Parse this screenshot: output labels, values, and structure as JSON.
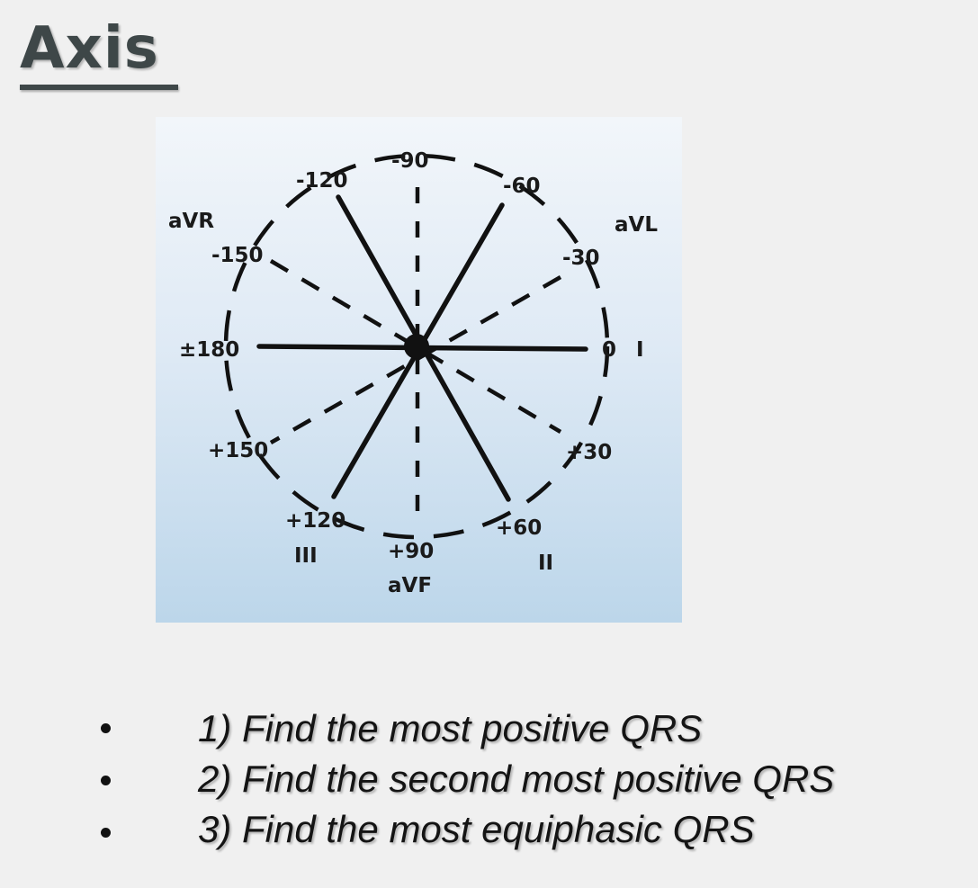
{
  "slide": {
    "title": "Axis"
  },
  "diagram": {
    "angle_labels": {
      "m90": "-90",
      "m120": "-120",
      "m60": "-60",
      "m150": "-150",
      "m30": "-30",
      "pm180": "±180",
      "zero": "0",
      "p150": "+150",
      "p30": "+30",
      "p120": "+120",
      "p60": "+60",
      "p90": "+90"
    },
    "lead_labels": {
      "aVR": "aVR",
      "aVL": "aVL",
      "I": "I",
      "III": "III",
      "II": "II",
      "aVF": "aVF"
    }
  },
  "bullets": [
    "1) Find the most positive QRS",
    "2) Find the second most positive QRS",
    "3) Find the most equiphasic QRS"
  ]
}
